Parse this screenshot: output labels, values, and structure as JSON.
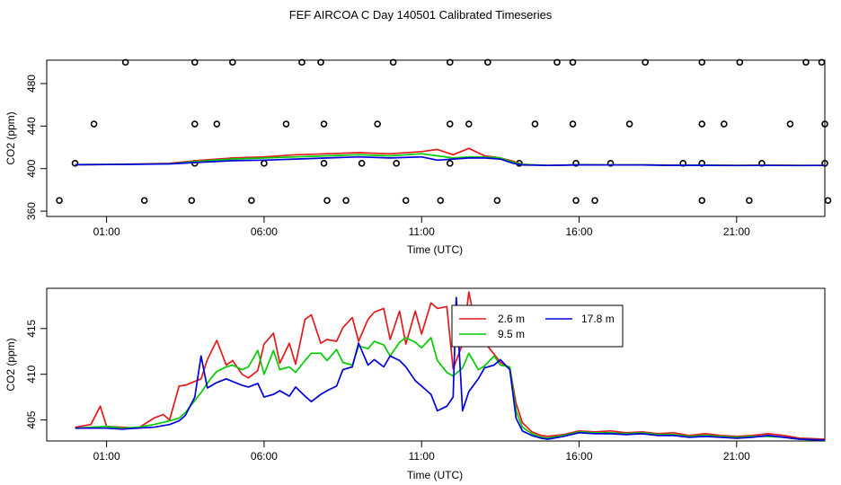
{
  "title": "FEF AIRCOA C  Day 140501  Calibrated Timeseries",
  "colors": {
    "s1": "#e41a1c",
    "s2": "#00cc00",
    "s3": "#0000dd",
    "axis": "#000000"
  },
  "chart_data": [
    {
      "type": "line",
      "panel": "top",
      "xlabel": "Time (UTC)",
      "ylabel": "CO2 (ppm)",
      "xlim": [
        -0.9,
        23.8
      ],
      "ylim": [
        355,
        502
      ],
      "xticks": [
        1,
        6,
        11,
        16,
        21
      ],
      "xtick_labels": [
        "01:00",
        "06:00",
        "11:00",
        "16:00",
        "21:00"
      ],
      "yticks": [
        360,
        400,
        440,
        480
      ],
      "ytick_labels": [
        "360",
        "400",
        "440",
        "480"
      ],
      "series": [
        {
          "name": "2.6 m",
          "x": [
            0,
            1,
            2,
            3,
            4,
            5,
            6,
            7,
            8,
            9,
            10,
            11,
            11.5,
            12,
            12.5,
            13,
            13.5,
            13.9,
            14.2,
            15,
            16,
            17,
            18,
            19,
            20,
            21,
            22,
            23,
            23.8
          ],
          "values": [
            403.7,
            403.9,
            404.3,
            405,
            408,
            410,
            411,
            413,
            414,
            415,
            414,
            416,
            418,
            413,
            419,
            412,
            410,
            407,
            404,
            403,
            403.7,
            403.5,
            403.6,
            403.2,
            403.3,
            403,
            403.2,
            403,
            403
          ]
        },
        {
          "name": "9.5 m",
          "x": [
            0,
            1,
            2,
            3,
            4,
            5,
            6,
            7,
            8,
            9,
            10,
            11,
            11.5,
            12,
            12.5,
            13,
            13.5,
            13.9,
            14.2,
            15,
            16,
            17,
            18,
            19,
            20,
            21,
            22,
            23,
            23.8
          ],
          "values": [
            403.7,
            403.9,
            404.2,
            404.5,
            407,
            409,
            410,
            411,
            412,
            413,
            412,
            414,
            412,
            410,
            411,
            411,
            410,
            406,
            404,
            403,
            403.6,
            403.4,
            403.5,
            403.1,
            403.2,
            403,
            403.1,
            403,
            403
          ]
        },
        {
          "name": "17.8 m",
          "x": [
            0,
            1,
            2,
            3,
            4,
            5,
            6,
            7,
            8,
            9,
            10,
            11,
            11.5,
            12,
            12.5,
            13,
            13.5,
            13.9,
            14.2,
            15,
            16,
            17,
            18,
            19,
            20,
            21,
            22,
            23,
            23.8
          ],
          "values": [
            403.7,
            403.8,
            404.1,
            404.4,
            406,
            407.5,
            408,
            409,
            410,
            411,
            410,
            411,
            408,
            409,
            410,
            410,
            409,
            405,
            403.5,
            403,
            403.5,
            403.4,
            403.4,
            403.1,
            403.1,
            402.9,
            403,
            402.9,
            403
          ]
        }
      ],
      "markers": {
        "x": [
          1.6,
          3.8,
          5,
          7.2,
          7.8,
          10.1,
          11.9,
          13.1,
          15.3,
          15.8,
          18.1,
          19.9,
          21.1,
          23.2,
          23.7,
          0.6,
          3.8,
          4.5,
          6.7,
          7.9,
          9.6,
          11.9,
          12.5,
          14.6,
          15.8,
          17.6,
          19.9,
          20.6,
          22.7,
          23.8,
          0,
          3.8,
          6,
          7.9,
          9.1,
          10.2,
          11.9,
          14.1,
          15.9,
          17,
          19.3,
          19.9,
          21.8,
          23.8,
          -0.5,
          2.2,
          3.7,
          5.6,
          8,
          8.6,
          10.5,
          11.6,
          13.4,
          15.9,
          16.5,
          19.9,
          21.4,
          23.9
        ],
        "values": [
          500,
          500,
          500,
          500,
          500,
          500,
          500,
          500,
          500,
          500,
          500,
          500,
          500,
          500,
          500,
          442,
          442,
          442,
          442,
          442,
          442,
          442,
          442,
          442,
          442,
          442,
          442,
          442,
          442,
          442,
          405,
          405,
          405,
          405,
          405,
          405,
          405,
          405,
          405,
          405,
          405,
          405,
          405,
          405,
          370,
          370,
          370,
          370,
          370,
          370,
          370,
          370,
          370,
          370,
          370,
          370,
          370,
          370
        ]
      }
    },
    {
      "type": "line",
      "panel": "bottom",
      "xlabel": "Time (UTC)",
      "ylabel": "CO2 (ppm)",
      "xlim": [
        -0.9,
        23.8
      ],
      "ylim": [
        402.7,
        419.4
      ],
      "xticks": [
        1,
        6,
        11,
        16,
        21
      ],
      "xtick_labels": [
        "01:00",
        "06:00",
        "11:00",
        "16:00",
        "21:00"
      ],
      "yticks": [
        405,
        410,
        415
      ],
      "ytick_labels": [
        "405",
        "410",
        "415"
      ],
      "legend": {
        "entries": [
          "2.6 m",
          "17.8 m",
          "9.5 m"
        ],
        "position": "upper-right-center"
      },
      "series": [
        {
          "name": "2.6 m",
          "x": [
            0,
            0.5,
            0.8,
            1,
            1.5,
            2,
            2.5,
            2.8,
            3,
            3.3,
            3.5,
            4,
            4.2,
            4.5,
            4.8,
            5,
            5.3,
            5.5,
            5.8,
            6,
            6.3,
            6.5,
            6.8,
            7,
            7.3,
            7.5,
            7.8,
            8,
            8.3,
            8.5,
            8.8,
            9,
            9.3,
            9.5,
            9.8,
            10,
            10.3,
            10.5,
            10.8,
            11,
            11.3,
            11.5,
            11.8,
            12,
            12.3,
            12.5,
            12.8,
            13,
            13.3,
            13.5,
            13.8,
            14,
            14.2,
            14.5,
            14.8,
            15,
            15.5,
            16,
            16.5,
            17,
            17.5,
            18,
            18.5,
            19,
            19.5,
            20,
            20.5,
            21,
            21.5,
            22,
            22.5,
            23,
            23.8
          ],
          "values": [
            404.2,
            404.5,
            406.5,
            404.3,
            404.2,
            404.1,
            405.2,
            405.6,
            405.0,
            408.7,
            408.8,
            409.5,
            411.6,
            413.7,
            411.0,
            411.5,
            410.0,
            409.6,
            410.4,
            413.3,
            414.5,
            411.2,
            413.4,
            411.1,
            416.0,
            416.5,
            413.4,
            413.8,
            413.6,
            415.1,
            416.2,
            413.6,
            416.0,
            416.8,
            417.2,
            413.8,
            416.9,
            413.3,
            416.9,
            414.4,
            417.8,
            417.2,
            417.4,
            410.6,
            413.3,
            419.0,
            413.8,
            413.5,
            412.2,
            411.3,
            410.7,
            406.8,
            404.7,
            403.7,
            403.3,
            403.2,
            403.4,
            403.8,
            403.7,
            403.8,
            403.6,
            403.7,
            403.5,
            403.6,
            403.3,
            403.5,
            403.3,
            403.2,
            403.3,
            403.5,
            403.3,
            403.0,
            402.9
          ]
        },
        {
          "name": "9.5 m",
          "x": [
            0,
            0.5,
            1,
            1.5,
            2,
            2.5,
            3,
            3.3,
            3.5,
            4,
            4.3,
            4.5,
            4.8,
            5,
            5.3,
            5.5,
            5.8,
            6,
            6.3,
            6.5,
            6.8,
            7,
            7.3,
            7.5,
            7.8,
            8,
            8.3,
            8.5,
            8.8,
            9,
            9.3,
            9.5,
            9.8,
            10,
            10.3,
            10.5,
            10.8,
            11,
            11.3,
            11.5,
            11.8,
            12,
            12.3,
            12.5,
            12.8,
            13,
            13.3,
            13.5,
            13.8,
            14,
            14.2,
            14.5,
            14.8,
            15,
            15.5,
            16,
            16.5,
            17,
            17.5,
            18,
            18.5,
            19,
            19.5,
            20,
            20.5,
            21,
            21.5,
            22,
            22.5,
            23,
            23.8
          ],
          "values": [
            404.1,
            404.2,
            404.3,
            404.1,
            404.2,
            404.5,
            404.9,
            405.2,
            405.8,
            408.0,
            409.5,
            410.3,
            410.8,
            411.0,
            410.5,
            410.8,
            412.6,
            410.0,
            412.6,
            410.5,
            410.8,
            410.2,
            411.5,
            412.3,
            412.3,
            411.5,
            412.7,
            411.3,
            411.0,
            413.1,
            412.8,
            413.6,
            413.2,
            412.0,
            413.5,
            414.0,
            413.5,
            412.9,
            414.0,
            411.5,
            410.2,
            409.8,
            410.7,
            412.3,
            410.5,
            410.9,
            412.0,
            411.0,
            410.8,
            406.0,
            404.2,
            403.5,
            403.1,
            403.0,
            403.3,
            403.7,
            403.6,
            403.6,
            403.5,
            403.6,
            403.4,
            403.4,
            403.2,
            403.3,
            403.2,
            403.1,
            403.2,
            403.2,
            403.1,
            402.9,
            402.8
          ]
        },
        {
          "name": "17.8 m",
          "x": [
            0,
            0.5,
            1,
            1.5,
            2,
            2.5,
            3,
            3.3,
            3.5,
            3.8,
            4,
            4.2,
            4.5,
            4.8,
            5,
            5.3,
            5.5,
            5.8,
            6,
            6.3,
            6.5,
            6.8,
            7,
            7.3,
            7.5,
            7.8,
            8,
            8.3,
            8.5,
            8.8,
            9,
            9.3,
            9.5,
            9.8,
            10,
            10.3,
            10.5,
            10.8,
            11,
            11.3,
            11.5,
            11.8,
            12,
            12.1,
            12.3,
            12.5,
            12.8,
            13,
            13.3,
            13.5,
            13.8,
            14,
            14.2,
            14.5,
            14.8,
            15,
            15.5,
            16,
            16.5,
            17,
            17.5,
            18,
            18.5,
            19,
            19.5,
            20,
            20.5,
            21,
            21.5,
            22,
            22.5,
            23,
            23.8
          ],
          "values": [
            404.1,
            404.1,
            404.1,
            404.0,
            404.1,
            404.2,
            404.5,
            404.9,
            405.5,
            407.5,
            412.0,
            408.5,
            409.1,
            409.5,
            409.2,
            408.8,
            408.6,
            409.0,
            407.5,
            407.8,
            408.2,
            407.6,
            408.6,
            407.6,
            407.0,
            407.8,
            408.2,
            408.7,
            410.5,
            410.8,
            413.4,
            411.0,
            411.6,
            410.8,
            412.0,
            411.5,
            410.8,
            409.3,
            408.7,
            407.8,
            406.0,
            406.5,
            407.5,
            418.4,
            406.0,
            408.1,
            409.5,
            410.7,
            411.0,
            411.6,
            410.5,
            405.2,
            403.8,
            403.3,
            403.0,
            402.9,
            403.2,
            403.6,
            403.5,
            403.5,
            403.4,
            403.5,
            403.3,
            403.3,
            403.1,
            403.2,
            403.1,
            403.0,
            403.1,
            403.3,
            403.1,
            402.9,
            402.8
          ]
        }
      ]
    }
  ]
}
